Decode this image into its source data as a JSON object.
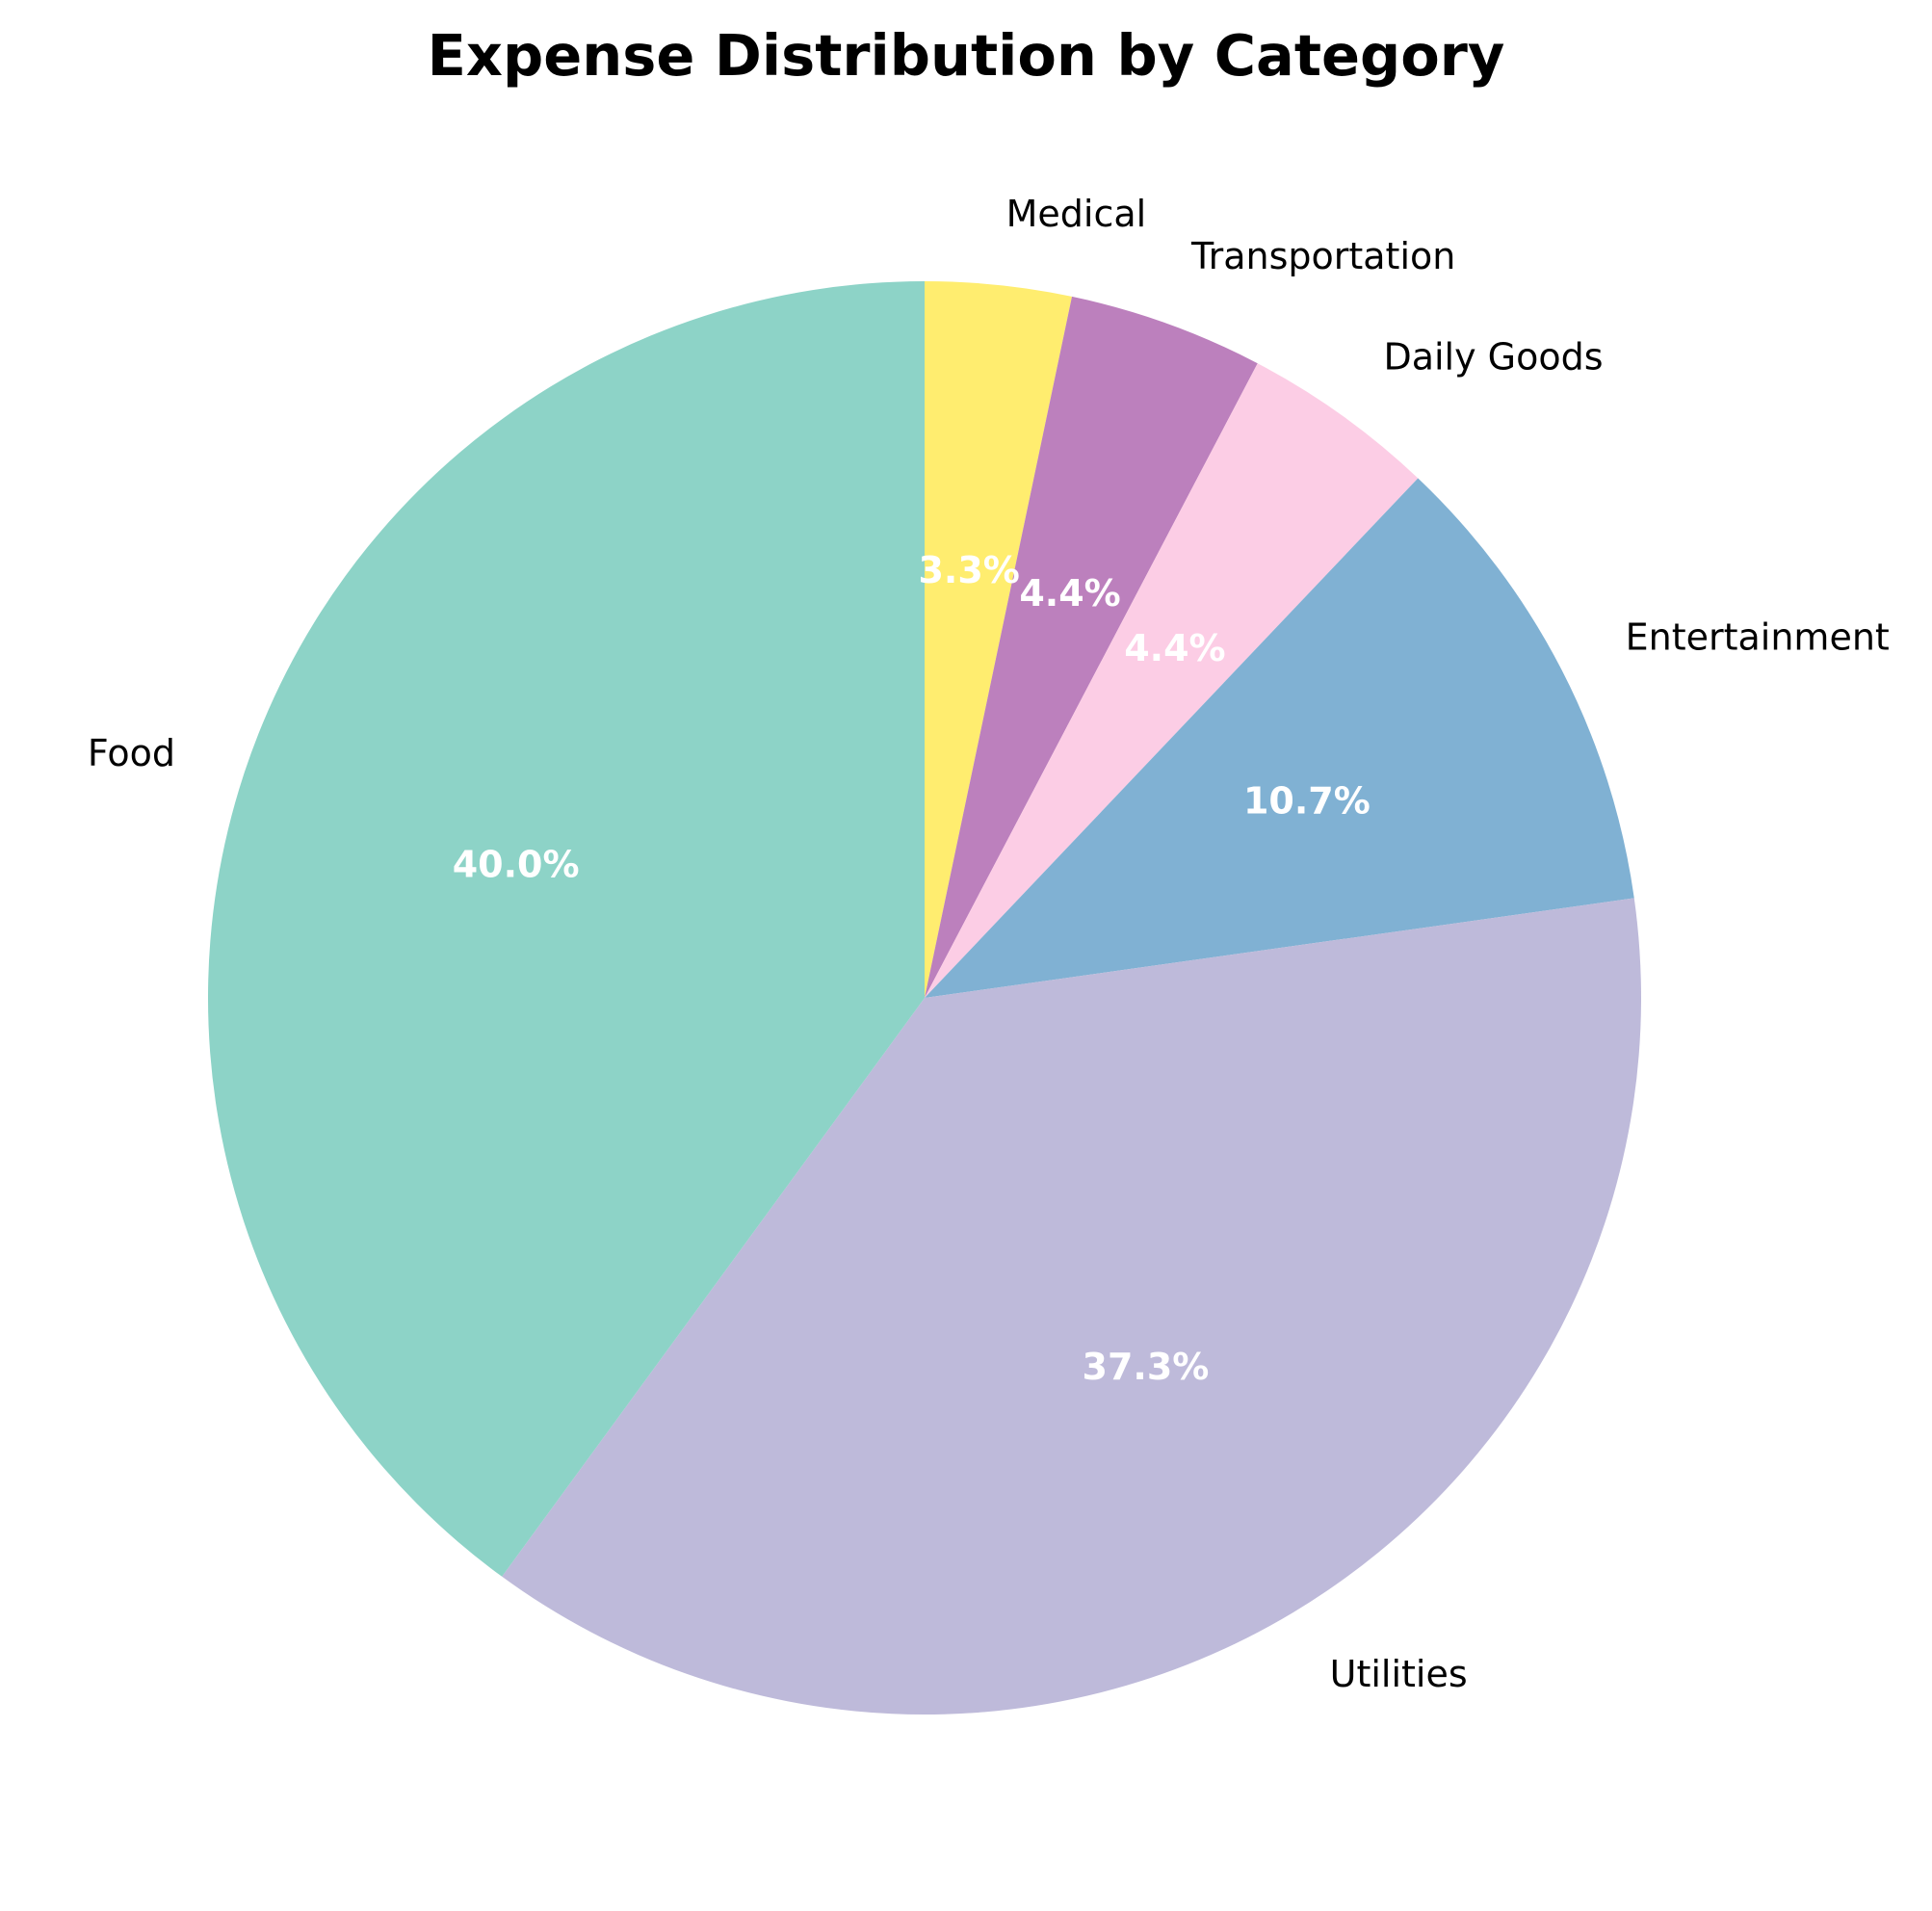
{
  "chart_data": {
    "type": "pie",
    "title": "Expense Distribution by Category",
    "categories": [
      "Medical",
      "Transportation",
      "Daily Goods",
      "Entertainment",
      "Utilities",
      "Food"
    ],
    "values": [
      3.3,
      4.4,
      4.4,
      10.7,
      37.3,
      40.0
    ],
    "value_labels": [
      "3.3%",
      "4.4%",
      "4.4%",
      "10.7%",
      "37.3%",
      "40.0%"
    ],
    "colors": [
      "#ffed6f",
      "#bc80bd",
      "#fccde5",
      "#80b1d3",
      "#bebada",
      "#8dd3c7"
    ],
    "start": "top",
    "direction": "clockwise",
    "legend": "none"
  }
}
